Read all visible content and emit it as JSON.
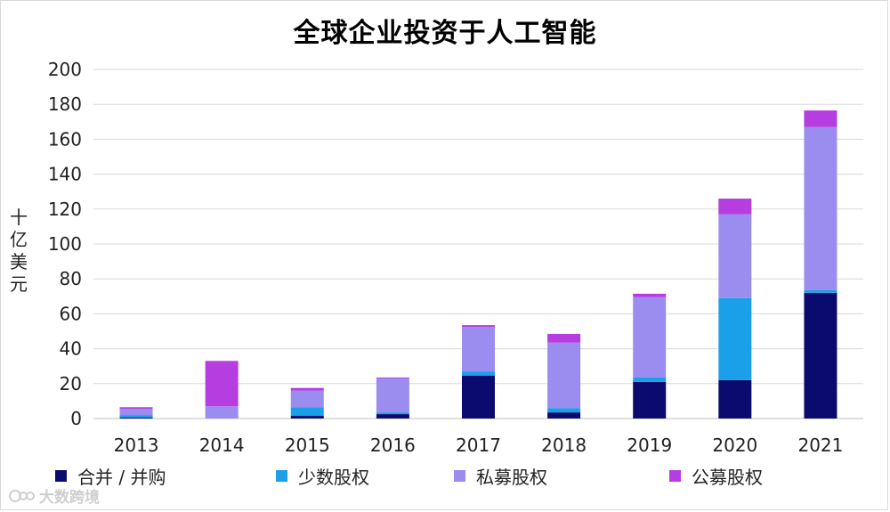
{
  "chart_data": {
    "type": "bar",
    "stacked": true,
    "title": "全球企业投资于人工智能",
    "ylabel": "十亿美元",
    "ylim": [
      0,
      200
    ],
    "yticks": [
      "0",
      "20",
      "40",
      "60",
      "80",
      "100",
      "120",
      "140",
      "160",
      "180",
      "200"
    ],
    "grid": true,
    "legend_position": "bottom",
    "categories": [
      "2013",
      "2014",
      "2015",
      "2016",
      "2017",
      "2018",
      "2019",
      "2020",
      "2021"
    ],
    "series": [
      {
        "name": "合并 / 并购",
        "color": "#0b0a6e",
        "values": [
          0.5,
          0,
          1.5,
          2.5,
          24.5,
          3.5,
          21,
          22,
          72
        ]
      },
      {
        "name": "少数股权",
        "color": "#1aa0e8",
        "values": [
          1.5,
          0,
          5,
          1,
          2.5,
          2.5,
          2.5,
          47,
          1.5
        ]
      },
      {
        "name": "私募股权",
        "color": "#9b8cf0",
        "values": [
          3.5,
          7,
          9.5,
          19.5,
          25.5,
          37.5,
          46,
          48,
          93.5
        ]
      },
      {
        "name": "公募股权",
        "color": "#b63de0",
        "values": [
          1,
          26,
          1.5,
          0.5,
          1,
          5,
          2,
          9,
          9.5
        ]
      }
    ]
  },
  "watermark": {
    "text": "大数跨境",
    "icon": "logo-icon"
  }
}
